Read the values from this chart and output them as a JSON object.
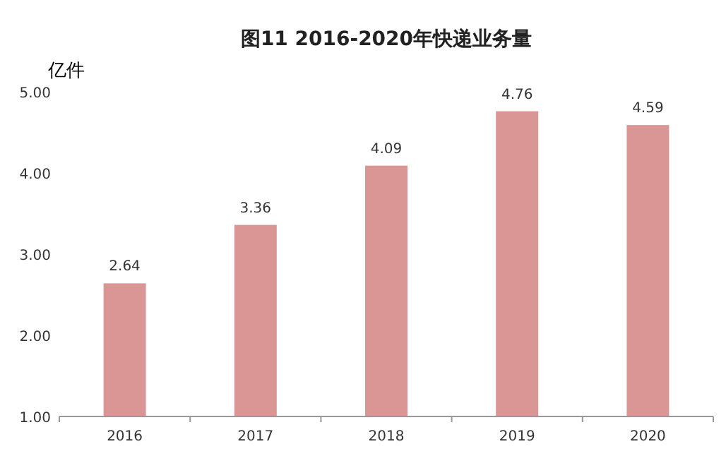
{
  "chart_data": {
    "type": "bar",
    "title": "图11  2016-2020年快递业务量",
    "ylabel": "亿件",
    "categories": [
      "2016",
      "2017",
      "2018",
      "2019",
      "2020"
    ],
    "values": [
      2.64,
      3.36,
      4.09,
      4.76,
      4.59
    ],
    "color": "#d99694",
    "ylim": [
      1,
      5
    ],
    "yticks": [
      {
        "value": 1,
        "label": "1.00"
      },
      {
        "value": 2,
        "label": "2.00"
      },
      {
        "value": 3,
        "label": "3.00"
      },
      {
        "value": 4,
        "label": "4.00"
      },
      {
        "value": 5,
        "label": "5.00"
      }
    ],
    "data_labels": true
  }
}
